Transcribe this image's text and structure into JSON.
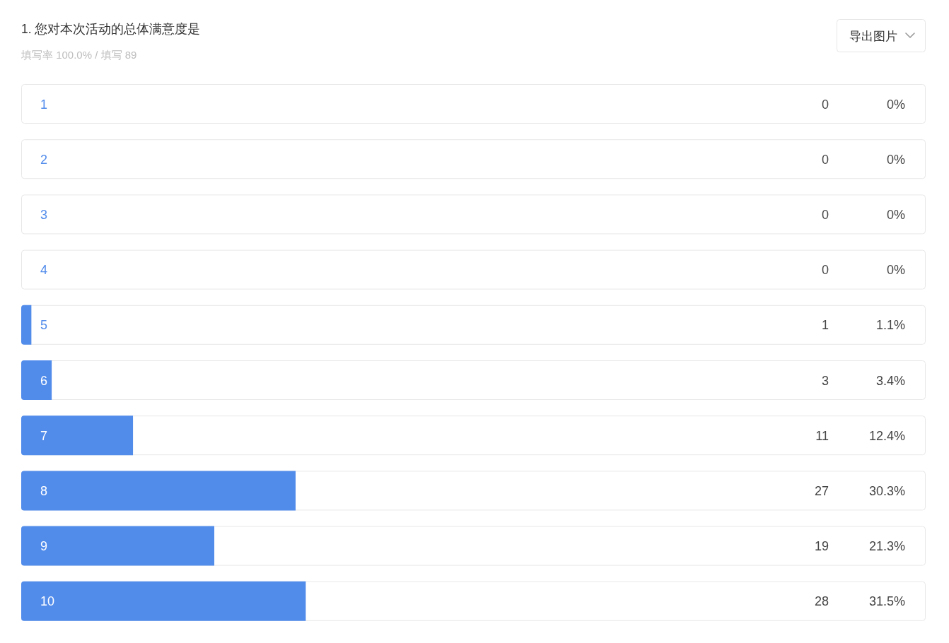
{
  "chart_data": {
    "type": "bar",
    "orientation": "horizontal",
    "title": "1. 您对本次活动的总体满意度是",
    "subtitle": "填写率 100.0% / 填写 89",
    "categories": [
      "1",
      "2",
      "3",
      "4",
      "5",
      "6",
      "7",
      "8",
      "9",
      "10"
    ],
    "values": [
      0,
      0,
      0,
      0,
      1,
      3,
      11,
      27,
      19,
      28
    ],
    "color": "#528ceb",
    "xlim": [
      0,
      89
    ],
    "tick_labels": "y",
    "data_labels": true,
    "annotations": [
      "导出图片",
      "0%",
      "0%",
      "0%",
      "0%",
      "1.1%",
      "3.4%",
      "12.4%",
      "30.3%",
      "21.3%",
      "31.5%"
    ]
  }
}
